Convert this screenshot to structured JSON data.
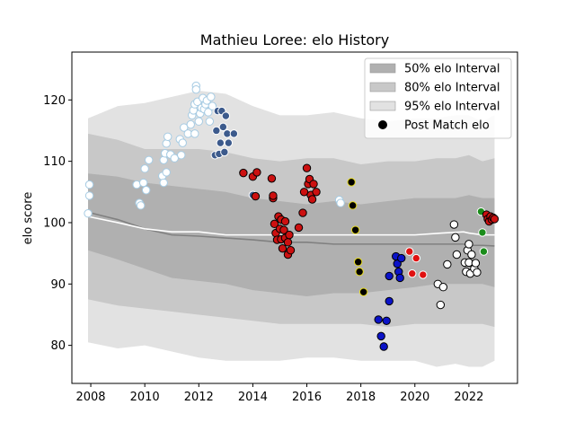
{
  "chart_data": {
    "type": "scatter",
    "title": "Mathieu Loree: elo History",
    "xlabel": "",
    "ylabel": "elo score",
    "xlim": [
      2007.3,
      2023.8
    ],
    "ylim": [
      73.8,
      127.8
    ],
    "x_ticks": [
      2008,
      2010,
      2012,
      2014,
      2016,
      2018,
      2020,
      2022
    ],
    "y_ticks": [
      80,
      90,
      100,
      110,
      120
    ],
    "legend_position": "top-right",
    "legend": [
      {
        "label": "50% elo Interval",
        "color": "#b0b0b0",
        "kind": "patch"
      },
      {
        "label": "80% elo Interval",
        "color": "#c8c8c8",
        "kind": "patch"
      },
      {
        "label": "95% elo Interval",
        "color": "#e2e2e2",
        "kind": "patch"
      },
      {
        "label": "Post Match elo",
        "color": "#000000",
        "kind": "marker"
      }
    ],
    "bands": {
      "x": [
        2007.9,
        2009.0,
        2010.0,
        2011.0,
        2012.0,
        2013.0,
        2014.0,
        2015.0,
        2016.0,
        2017.0,
        2018.0,
        2019.0,
        2020.0,
        2020.8,
        2021.5,
        2022.0,
        2022.5,
        2022.95
      ],
      "p95_upper": [
        117.0,
        119.0,
        119.5,
        120.5,
        121.5,
        121.0,
        119.0,
        117.5,
        117.5,
        118.0,
        117.0,
        116.5,
        117.0,
        117.0,
        117.5,
        117.5,
        116.5,
        117.5
      ],
      "p80_upper": [
        114.5,
        113.5,
        112.0,
        112.0,
        112.0,
        111.5,
        110.5,
        110.0,
        110.5,
        110.5,
        109.5,
        110.0,
        110.0,
        110.5,
        110.5,
        111.0,
        110.0,
        110.5
      ],
      "p50_upper": [
        108.0,
        107.5,
        106.5,
        106.0,
        105.5,
        105.0,
        104.0,
        103.5,
        103.0,
        103.5,
        103.0,
        103.5,
        104.0,
        104.0,
        104.0,
        104.5,
        104.0,
        104.0
      ],
      "p50_lower": [
        95.5,
        94.0,
        92.5,
        91.0,
        90.5,
        90.0,
        89.0,
        88.5,
        88.0,
        88.5,
        88.5,
        89.0,
        89.5,
        90.0,
        90.0,
        90.0,
        90.0,
        89.5
      ],
      "p80_lower": [
        87.5,
        86.5,
        86.0,
        85.5,
        85.0,
        84.5,
        84.0,
        83.5,
        83.5,
        83.5,
        83.5,
        83.0,
        83.5,
        83.5,
        83.5,
        83.5,
        83.5,
        83.0
      ],
      "p95_lower": [
        80.5,
        79.5,
        80.0,
        79.0,
        78.0,
        77.5,
        77.5,
        77.5,
        78.0,
        78.0,
        77.5,
        77.5,
        77.5,
        76.5,
        77.0,
        76.5,
        76.5,
        77.5
      ]
    },
    "median_line": {
      "x": [
        2007.9,
        2009.0,
        2010.0,
        2011.0,
        2012.0,
        2013.0,
        2014.0,
        2015.0,
        2016.0,
        2017.0,
        2018.0,
        2019.0,
        2020.0,
        2021.0,
        2021.8,
        2022.0,
        2022.5,
        2022.95
      ],
      "y": [
        101.7,
        100.5,
        99.0,
        98.0,
        97.8,
        97.5,
        97.2,
        96.8,
        96.8,
        96.5,
        96.5,
        96.5,
        96.5,
        96.5,
        96.5,
        96.3,
        96.3,
        96.2
      ],
      "color": "#808080"
    },
    "mean_line": {
      "x": [
        2007.9,
        2009.0,
        2010.0,
        2011.0,
        2012.0,
        2013.0,
        2014.0,
        2015.0,
        2016.0,
        2017.0,
        2018.0,
        2019.0,
        2020.0,
        2021.0,
        2021.8,
        2022.0,
        2022.5,
        2022.95
      ],
      "y": [
        101.0,
        100.0,
        99.0,
        98.5,
        98.5,
        98.0,
        98.0,
        98.0,
        98.0,
        98.0,
        98.0,
        98.0,
        98.0,
        98.3,
        98.5,
        98.3,
        98.0,
        98.0
      ],
      "color": "#ffffff"
    },
    "series": [
      {
        "fill": "#ffffff",
        "edge": "#a6cbe3",
        "points": [
          [
            2007.9,
            101.5
          ],
          [
            2007.95,
            104.4
          ],
          [
            2007.95,
            106.2
          ],
          [
            2009.7,
            106.2
          ],
          [
            2009.8,
            103.2
          ],
          [
            2009.85,
            102.8
          ],
          [
            2009.95,
            106.5
          ],
          [
            2010.0,
            108.8
          ],
          [
            2010.05,
            105.3
          ],
          [
            2010.15,
            110.2
          ],
          [
            2010.65,
            107.6
          ],
          [
            2010.7,
            110.2
          ],
          [
            2010.7,
            106.5
          ],
          [
            2010.75,
            111.3
          ],
          [
            2010.8,
            108.2
          ],
          [
            2010.8,
            112.9
          ],
          [
            2010.85,
            114.0
          ],
          [
            2010.95,
            111.1
          ],
          [
            2011.1,
            110.5
          ],
          [
            2011.3,
            113.6
          ],
          [
            2011.35,
            111.0
          ],
          [
            2011.4,
            113.0
          ],
          [
            2011.45,
            115.5
          ],
          [
            2011.6,
            114.5
          ],
          [
            2011.7,
            116.0
          ],
          [
            2011.75,
            117.5
          ],
          [
            2011.8,
            118.3
          ],
          [
            2011.85,
            114.5
          ],
          [
            2011.85,
            119.3
          ],
          [
            2011.9,
            122.3
          ],
          [
            2011.9,
            121.7
          ],
          [
            2011.95,
            119.7
          ],
          [
            2012.0,
            116.5
          ],
          [
            2012.05,
            117.8
          ],
          [
            2012.1,
            118.7
          ],
          [
            2012.15,
            120.3
          ],
          [
            2012.2,
            118.5
          ],
          [
            2012.25,
            119.3
          ],
          [
            2012.3,
            119.9
          ],
          [
            2012.35,
            118.0
          ],
          [
            2012.4,
            116.5
          ],
          [
            2012.45,
            120.5
          ],
          [
            2012.5,
            119.0
          ],
          [
            2017.2,
            103.7
          ],
          [
            2017.25,
            103.2
          ]
        ]
      },
      {
        "fill": "#3c5a8c",
        "edge": "#ffffff",
        "points": [
          [
            2012.6,
            111.0
          ],
          [
            2012.65,
            115.0
          ],
          [
            2012.7,
            118.2
          ],
          [
            2012.75,
            111.2
          ],
          [
            2012.8,
            113.0
          ],
          [
            2012.85,
            118.2
          ],
          [
            2012.9,
            115.6
          ],
          [
            2012.95,
            111.5
          ],
          [
            2013.0,
            117.4
          ],
          [
            2013.05,
            114.5
          ],
          [
            2013.1,
            113.0
          ],
          [
            2013.3,
            114.5
          ],
          [
            2014.0,
            104.5
          ]
        ]
      },
      {
        "fill": "#cc1010",
        "edge": "#000000",
        "points": [
          [
            2013.65,
            108.1
          ],
          [
            2014.0,
            107.5
          ],
          [
            2014.1,
            104.3
          ],
          [
            2014.15,
            108.2
          ],
          [
            2014.7,
            107.2
          ],
          [
            2014.75,
            104.0
          ],
          [
            2014.75,
            104.4
          ],
          [
            2014.8,
            99.8
          ],
          [
            2014.85,
            98.3
          ],
          [
            2014.9,
            97.2
          ],
          [
            2014.95,
            101.0
          ],
          [
            2015.0,
            99.0
          ],
          [
            2015.05,
            100.5
          ],
          [
            2015.05,
            97.3
          ],
          [
            2015.1,
            95.8
          ],
          [
            2015.15,
            98.8
          ],
          [
            2015.2,
            100.2
          ],
          [
            2015.2,
            97.5
          ],
          [
            2015.3,
            96.8
          ],
          [
            2015.3,
            94.8
          ],
          [
            2015.35,
            98.0
          ],
          [
            2015.4,
            95.5
          ],
          [
            2015.7,
            99.2
          ],
          [
            2015.85,
            101.6
          ],
          [
            2015.9,
            105.0
          ],
          [
            2016.0,
            108.9
          ],
          [
            2016.05,
            106.3
          ],
          [
            2016.1,
            107.1
          ],
          [
            2016.15,
            104.5
          ],
          [
            2016.2,
            103.8
          ],
          [
            2016.25,
            106.3
          ],
          [
            2016.35,
            105.0
          ]
        ]
      },
      {
        "fill": "#000000",
        "edge": "#e8dc1e",
        "points": [
          [
            2017.65,
            106.6
          ],
          [
            2017.7,
            102.8
          ],
          [
            2017.8,
            98.8
          ],
          [
            2017.9,
            93.6
          ],
          [
            2017.95,
            92.0
          ],
          [
            2018.1,
            88.7
          ]
        ]
      },
      {
        "fill": "#0b13c8",
        "edge": "#000000",
        "points": [
          [
            2018.65,
            84.2
          ],
          [
            2018.75,
            81.5
          ],
          [
            2018.85,
            79.8
          ],
          [
            2018.95,
            84.0
          ],
          [
            2019.05,
            87.2
          ],
          [
            2019.05,
            91.3
          ],
          [
            2019.3,
            94.5
          ],
          [
            2019.35,
            93.3
          ],
          [
            2019.4,
            92.0
          ],
          [
            2019.45,
            91.0
          ],
          [
            2019.5,
            94.2
          ]
        ]
      },
      {
        "fill": "#e01010",
        "edge": "#ffffff",
        "points": [
          [
            2019.8,
            95.3
          ],
          [
            2019.9,
            91.7
          ],
          [
            2020.05,
            94.2
          ],
          [
            2020.3,
            91.5
          ]
        ]
      },
      {
        "fill": "#ffffff",
        "edge": "#000000",
        "points": [
          [
            2020.85,
            90.0
          ],
          [
            2020.95,
            86.6
          ],
          [
            2021.05,
            89.5
          ],
          [
            2021.2,
            93.2
          ],
          [
            2021.45,
            99.7
          ],
          [
            2021.5,
            97.6
          ],
          [
            2021.55,
            94.8
          ],
          [
            2021.85,
            93.5
          ],
          [
            2021.9,
            92.0
          ],
          [
            2021.95,
            95.5
          ],
          [
            2022.0,
            96.5
          ],
          [
            2022.0,
            93.5
          ],
          [
            2022.05,
            91.7
          ],
          [
            2022.1,
            94.8
          ],
          [
            2022.2,
            92.5
          ],
          [
            2022.3,
            91.9
          ],
          [
            2022.25,
            93.4
          ]
        ]
      },
      {
        "fill": "#1a8c1a",
        "edge": "#ffffff",
        "points": [
          [
            2022.45,
            101.8
          ],
          [
            2022.5,
            98.4
          ],
          [
            2022.55,
            95.3
          ]
        ]
      },
      {
        "fill": "#cc1010",
        "edge": "#000000",
        "points": [
          [
            2022.65,
            101.3
          ],
          [
            2022.7,
            100.6
          ],
          [
            2022.75,
            100.2
          ],
          [
            2022.8,
            101.0
          ],
          [
            2022.85,
            100.5
          ],
          [
            2022.9,
            100.8
          ],
          [
            2022.95,
            100.6
          ]
        ]
      }
    ]
  }
}
